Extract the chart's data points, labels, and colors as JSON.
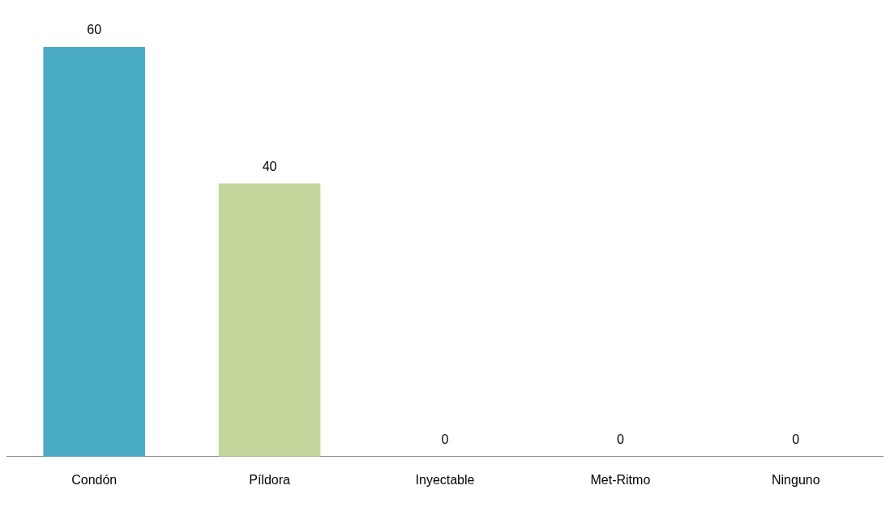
{
  "chart_data": {
    "type": "bar",
    "categories": [
      "Condón",
      "Píldora",
      "Inyectable",
      "Met-Ritmo",
      "Ninguno"
    ],
    "values": [
      60,
      40,
      0,
      0,
      0
    ],
    "colors": [
      "#4bacc6",
      "#c3d69b",
      "#8064a2",
      "#f79646",
      "#9bbb59"
    ],
    "data_labels": true,
    "grid": false,
    "legend": false
  }
}
